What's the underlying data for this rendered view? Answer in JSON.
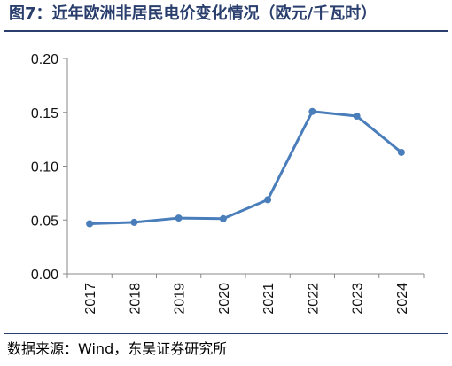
{
  "title": "图7：近年欧洲非居民电价变化情况（欧元/千瓦时）",
  "source": {
    "label": "数据来源：",
    "text": "Wind，东吴证券研究所"
  },
  "chart_data": {
    "type": "line",
    "title": "图7：近年欧洲非居民电价变化情况（欧元/千瓦时）",
    "xlabel": "",
    "ylabel": "",
    "x": [
      "2017",
      "2018",
      "2019",
      "2020",
      "2021",
      "2022",
      "2023",
      "2024"
    ],
    "series": [
      {
        "values": [
          0.0465,
          0.0478,
          0.0518,
          0.0512,
          0.0688,
          0.1508,
          0.1465,
          0.1128
        ]
      }
    ],
    "ylim": [
      0,
      0.2
    ],
    "yticks": [
      "0.00",
      "0.05",
      "0.10",
      "0.15",
      "0.20"
    ],
    "grid": false,
    "legend": "none",
    "colors": {
      "line": "#4a7ebb",
      "title": "#2a3f6d",
      "axis": "#888888"
    }
  }
}
